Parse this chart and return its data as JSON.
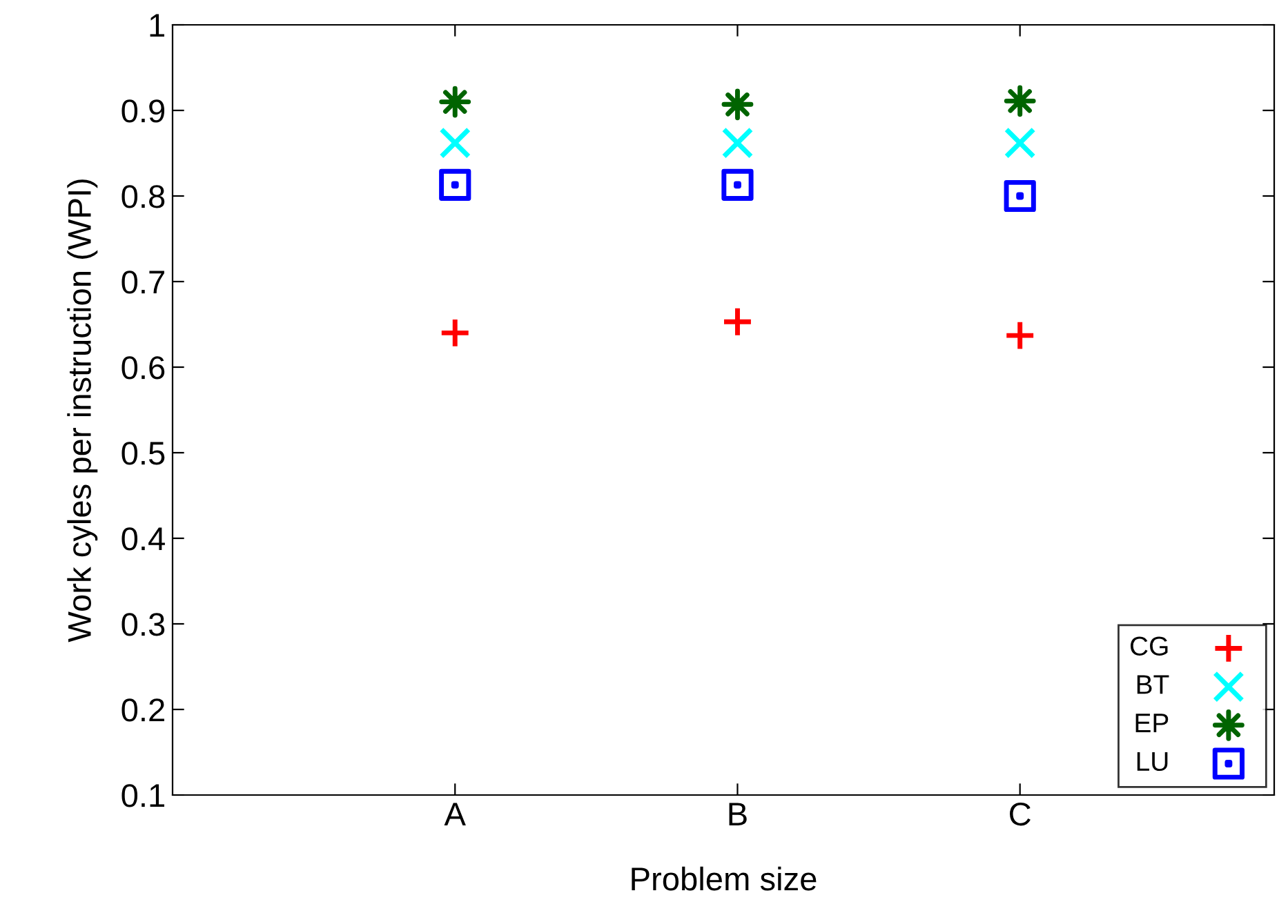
{
  "chart_data": {
    "type": "scatter",
    "xlabel": "Problem size",
    "ylabel": "Work cyles per instruction (WPI)",
    "categories": [
      "A",
      "B",
      "C"
    ],
    "ylim": [
      0.1,
      1
    ],
    "yticks": [
      0.1,
      0.2,
      0.3,
      0.4,
      0.5,
      0.6,
      0.7,
      0.8,
      0.9,
      1
    ],
    "grid": false,
    "legend": "bottom right",
    "series": [
      {
        "name": "CG",
        "color": "#ff0000",
        "marker": "plus",
        "values": [
          0.64,
          0.653,
          0.637
        ]
      },
      {
        "name": "BT",
        "color": "#00ffff",
        "marker": "x",
        "values": [
          0.862,
          0.862,
          0.862
        ]
      },
      {
        "name": "EP",
        "color": "#006400",
        "marker": "star",
        "values": [
          0.91,
          0.907,
          0.911
        ]
      },
      {
        "name": "LU",
        "color": "#0000ff",
        "marker": "square",
        "values": [
          0.813,
          0.813,
          0.8
        ]
      }
    ]
  }
}
